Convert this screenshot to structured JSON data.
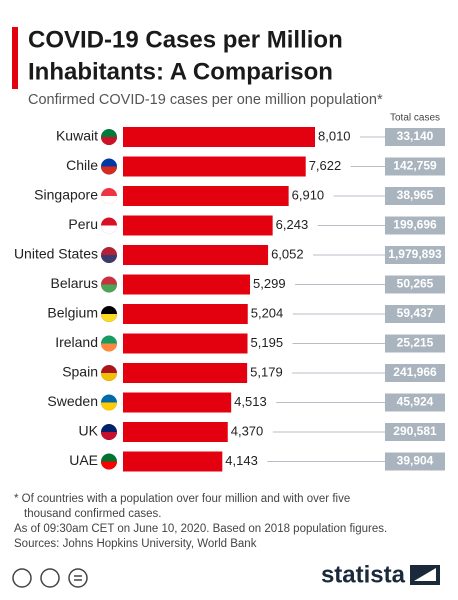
{
  "chart_data": {
    "type": "bar",
    "title": [
      "COVID-19 Cases per Million",
      "Inhabitants: A Comparison"
    ],
    "subtitle": "Confirmed COVID-19 cases per one million population*",
    "categories": [
      "Kuwait",
      "Chile",
      "Singapore",
      "Peru",
      "United States",
      "Belarus",
      "Belgium",
      "Ireland",
      "Spain",
      "Sweden",
      "UK",
      "UAE"
    ],
    "values": [
      8010,
      7622,
      6910,
      6243,
      6052,
      5299,
      5204,
      5195,
      5179,
      4513,
      4370,
      4143
    ],
    "value_labels": [
      "8,010",
      "7,622",
      "6,910",
      "6,243",
      "6,052",
      "5,299",
      "5,204",
      "5,195",
      "5,179",
      "4,513",
      "4,370",
      "4,143"
    ],
    "color": "#e3000f",
    "total_cases": {
      "label": "Total cases",
      "values": [
        33140,
        142759,
        38965,
        199696,
        1979893,
        50265,
        59437,
        25215,
        241966,
        45924,
        290581,
        39904
      ],
      "value_labels": [
        "33,140",
        "142,759",
        "38,965",
        "199,696",
        "1,979,893",
        "50,265",
        "59,437",
        "25,215",
        "241,966",
        "45,924",
        "290,581",
        "39,904"
      ],
      "color": "#a9b4be"
    },
    "notes": [
      "* Of countries with a population over four million and with over five",
      "thousand confirmed cases.",
      "As of 09:30am CET on June 10, 2020. Based on 2018 population figures.",
      "Sources: Johns Hopkins University, World Bank"
    ],
    "brand": "statista"
  }
}
